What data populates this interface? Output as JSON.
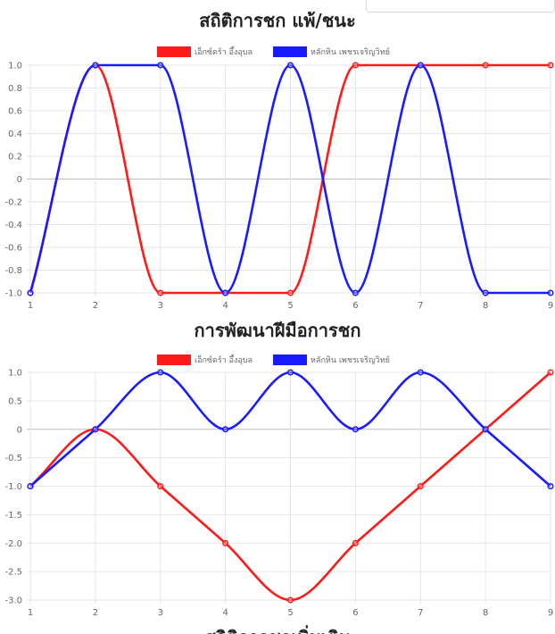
{
  "colors": {
    "player1": "#ff1a1a",
    "player2": "#1a1aff",
    "grid": "#e6e6e6",
    "zero_line": "#bdbdbd"
  },
  "footer_title": "สถิติการชกเพิ่มเติม",
  "chart_data": [
    {
      "type": "line",
      "title": "สถิติการชก แพ้/ชนะ",
      "x": [
        1,
        2,
        3,
        4,
        5,
        6,
        7,
        8,
        9
      ],
      "ylim": [
        -1.0,
        1.0
      ],
      "yticks": [
        "1.0",
        "0.8",
        "0.6",
        "0.4",
        "0.2",
        "0",
        "-0.2",
        "-0.4",
        "-0.6",
        "-0.8",
        "-1.0"
      ],
      "legend_position": "top",
      "grid": true,
      "series": [
        {
          "name": "เอ็กซ์ดร้า อึ้งอุบล",
          "color": "#ff1a1a",
          "values": [
            -1,
            1,
            -1,
            -1,
            -1,
            1,
            1,
            1,
            1
          ]
        },
        {
          "name": "หลักหิน เพชรเจริญวิทย์",
          "color": "#1a1aff",
          "values": [
            -1,
            1,
            1,
            -1,
            1,
            -1,
            1,
            -1,
            -1
          ]
        }
      ]
    },
    {
      "type": "line",
      "title": "การพัฒนาฝีมือการชก",
      "x": [
        1,
        2,
        3,
        4,
        5,
        6,
        7,
        8,
        9
      ],
      "ylim": [
        -3.0,
        1.0
      ],
      "yticks": [
        "1.0",
        "0.5",
        "0",
        "-0.5",
        "-1.0",
        "-1.5",
        "-2.0",
        "-2.5",
        "-3.0"
      ],
      "legend_position": "top",
      "grid": true,
      "series": [
        {
          "name": "เอ็กซ์ดร้า อึ้งอุบล",
          "color": "#ff1a1a",
          "values": [
            -1,
            0,
            -1,
            -2,
            -3,
            -2,
            -1,
            0,
            1
          ]
        },
        {
          "name": "หลักหิน เพชรเจริญวิทย์",
          "color": "#1a1aff",
          "values": [
            -1,
            0,
            1,
            0,
            1,
            0,
            1,
            0,
            -1
          ]
        }
      ]
    }
  ]
}
